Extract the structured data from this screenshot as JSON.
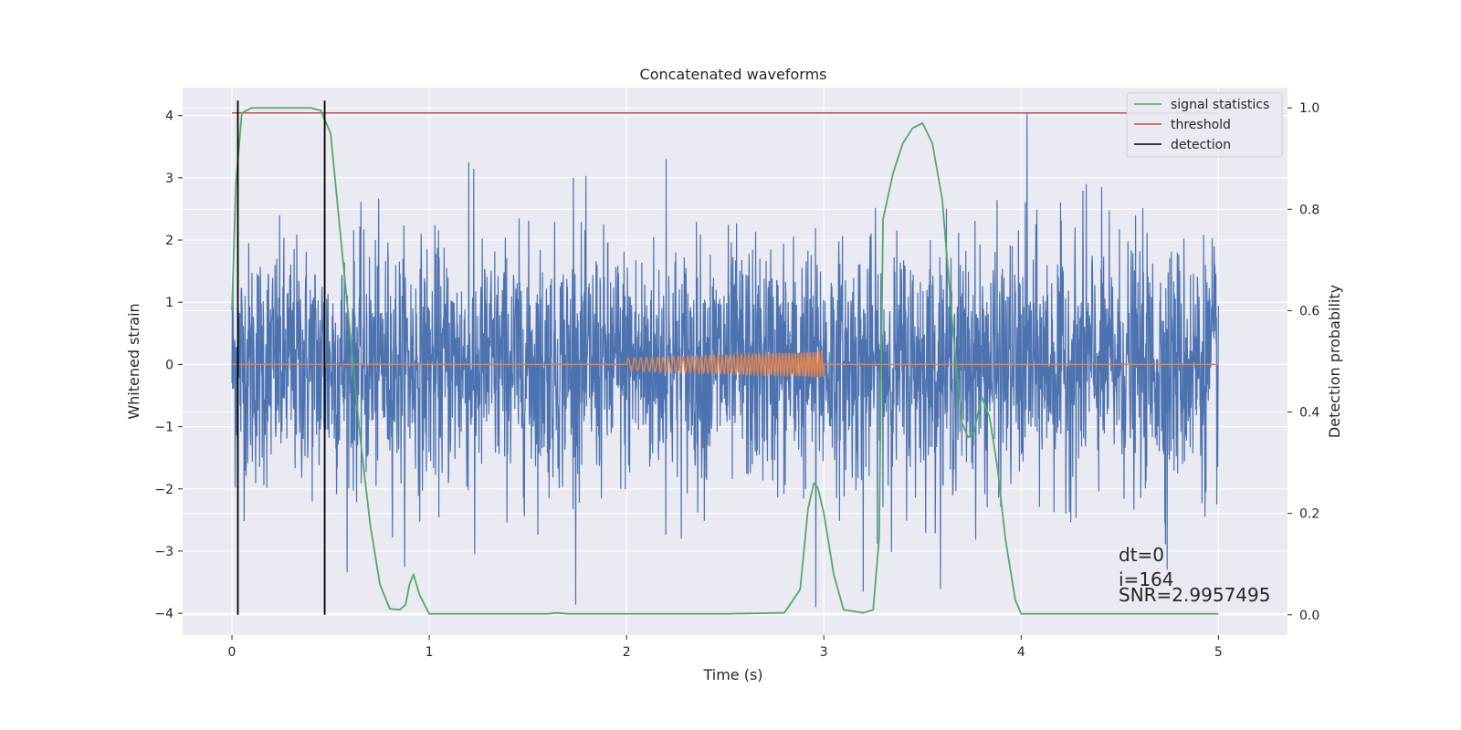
{
  "chart_data": {
    "type": "line",
    "title": "Concatenated waveforms",
    "xlabel": "Time (s)",
    "ylabel": "Whitened strain",
    "y2label": "Detection probability",
    "xlim": [
      -0.25,
      5.35
    ],
    "ylim": [
      -4.35,
      4.45
    ],
    "y2lim": [
      -0.04,
      1.04
    ],
    "xticks": [
      0,
      1,
      2,
      3,
      4,
      5
    ],
    "yticks": [
      -4,
      -3,
      -2,
      -1,
      0,
      1,
      2,
      3,
      4
    ],
    "y2ticks": [
      0.0,
      0.2,
      0.4,
      0.6,
      0.8,
      1.0
    ],
    "xtick_labels": [
      "0",
      "1",
      "2",
      "3",
      "4",
      "5"
    ],
    "ytick_labels": [
      "−4",
      "−3",
      "−2",
      "−1",
      "0",
      "1",
      "2",
      "3",
      "4"
    ],
    "y2tick_labels": [
      "0.0",
      "0.2",
      "0.4",
      "0.6",
      "0.8",
      "1.0"
    ],
    "grid": true,
    "legend_position": "top-right",
    "series": [
      {
        "name": "",
        "axis": "left",
        "color": "#4c72b0",
        "kind": "noise",
        "x_range": [
          0,
          5
        ],
        "typical_amplitude": 1.2,
        "peaks": [
          {
            "x": 1.2,
            "y": 3.25
          },
          {
            "x": 2.2,
            "y": 3.3
          },
          {
            "x": 4.03,
            "y": 4.05
          },
          {
            "x": 4.33,
            "y": 2.9
          },
          {
            "x": 1.73,
            "y": 3.0
          },
          {
            "x": 2.96,
            "y": -3.9
          },
          {
            "x": 3.2,
            "y": -3.65
          },
          {
            "x": 4.74,
            "y": -3.3
          },
          {
            "x": 1.23,
            "y": -3.05
          }
        ]
      },
      {
        "name": "",
        "axis": "left",
        "color": "#dd8452",
        "kind": "chirp",
        "x_range": [
          2.0,
          3.0
        ],
        "amplitude_range": [
          0.1,
          0.2
        ]
      },
      {
        "name": "signal statistics",
        "axis": "right",
        "color": "#55a868",
        "x": [
          0,
          0.02,
          0.05,
          0.1,
          0.2,
          0.3,
          0.4,
          0.45,
          0.5,
          0.55,
          0.6,
          0.65,
          0.7,
          0.75,
          0.8,
          0.85,
          0.88,
          0.9,
          0.92,
          0.95,
          1.0,
          1.2,
          1.6,
          1.65,
          1.7,
          2.0,
          2.5,
          2.8,
          2.88,
          2.92,
          2.95,
          2.97,
          3.0,
          3.05,
          3.1,
          3.2,
          3.25,
          3.28,
          3.3,
          3.35,
          3.4,
          3.45,
          3.5,
          3.55,
          3.6,
          3.65,
          3.7,
          3.73,
          3.76,
          3.8,
          3.84,
          3.88,
          3.92,
          3.97,
          4.0,
          4.5,
          5.0
        ],
        "y": [
          0.6,
          0.85,
          0.99,
          1.0,
          1.0,
          1.0,
          1.0,
          0.995,
          0.95,
          0.75,
          0.55,
          0.35,
          0.18,
          0.06,
          0.012,
          0.01,
          0.02,
          0.06,
          0.08,
          0.04,
          0.002,
          0.002,
          0.002,
          0.004,
          0.002,
          0.002,
          0.002,
          0.004,
          0.05,
          0.21,
          0.26,
          0.25,
          0.2,
          0.08,
          0.01,
          0.004,
          0.01,
          0.15,
          0.78,
          0.87,
          0.93,
          0.96,
          0.97,
          0.93,
          0.82,
          0.58,
          0.38,
          0.35,
          0.36,
          0.43,
          0.39,
          0.29,
          0.15,
          0.03,
          0.002,
          0.002,
          0.002
        ]
      },
      {
        "name": "threshold",
        "axis": "right",
        "color": "#c44e52",
        "x": [
          0,
          5
        ],
        "y": [
          0.99,
          0.99
        ]
      },
      {
        "name": "detection",
        "axis": "right",
        "color": "#000000",
        "vlines": [
          0.03,
          0.47
        ],
        "y_range": [
          0.0,
          1.0
        ]
      }
    ],
    "annotations": {
      "dt": "dt=0",
      "i": "i=164",
      "snr": "SNR=2.9957495"
    }
  }
}
